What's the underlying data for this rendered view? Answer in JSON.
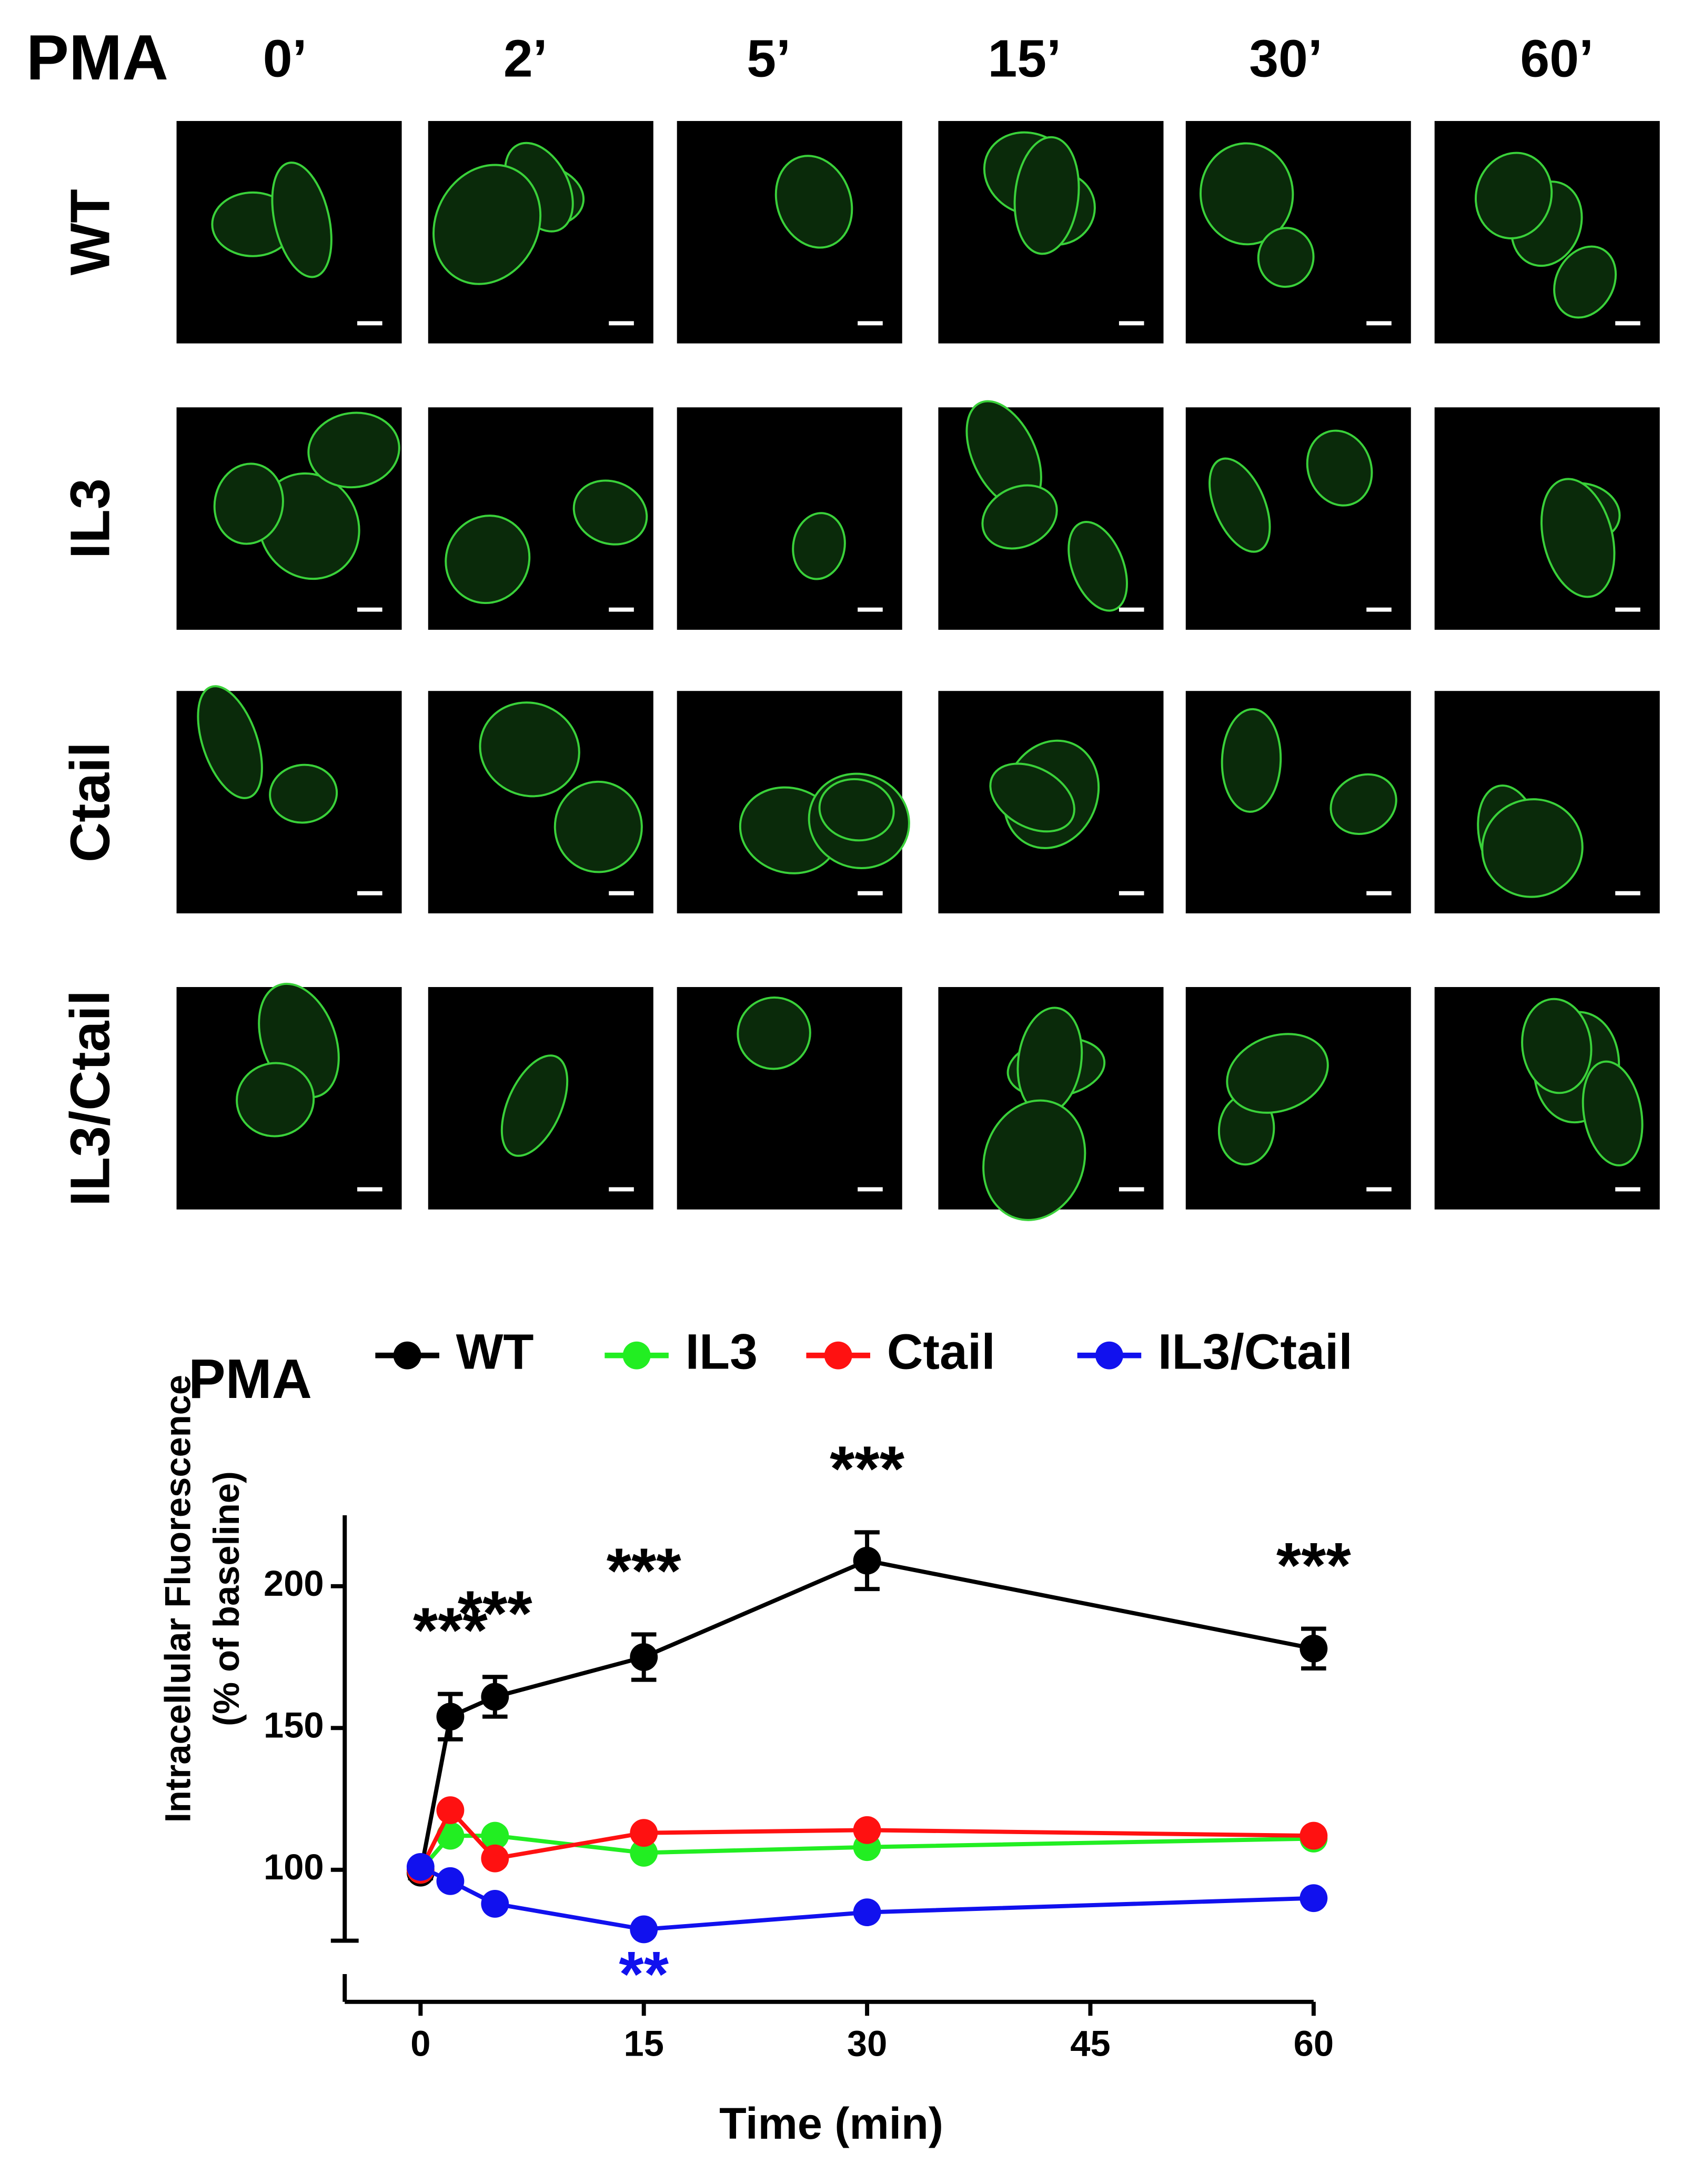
{
  "panel": {
    "title": "PMA",
    "columns": [
      "0’",
      "2’",
      "5’",
      "15’",
      "30’",
      "60’"
    ],
    "rows": [
      "WT",
      "IL3",
      "Ctail",
      "IL3/Ctail"
    ]
  },
  "chart_data": {
    "type": "line",
    "legend_title": "PMA",
    "x_label": "Time (min)",
    "y_label": [
      "Intracellular Fluorescence",
      "(% of baseline)"
    ],
    "x": [
      0,
      2,
      5,
      15,
      30,
      60
    ],
    "xlim": [
      -5,
      60
    ],
    "xticks": [
      0,
      15,
      30,
      45,
      60
    ],
    "ylim": [
      75,
      225
    ],
    "yticks": [
      100,
      150,
      200
    ],
    "series": [
      {
        "name": "WT",
        "color": "#000000",
        "values": [
          99,
          154,
          161,
          175,
          209,
          178
        ],
        "errors": [
          2,
          8,
          7,
          8,
          10,
          7
        ]
      },
      {
        "name": "IL3",
        "color": "#22ee22",
        "values": [
          100,
          112,
          112,
          106,
          108,
          111
        ]
      },
      {
        "name": "Ctail",
        "color": "#ff1111",
        "values": [
          100,
          121,
          104,
          113,
          114,
          112
        ]
      },
      {
        "name": "IL3/Ctail",
        "color": "#1111ee",
        "values": [
          101,
          96,
          88,
          79,
          85,
          90
        ]
      }
    ],
    "annotations": [
      {
        "text": "***",
        "x": 2,
        "color": "#000000"
      },
      {
        "text": "***",
        "x": 5,
        "color": "#000000"
      },
      {
        "text": "***",
        "x": 15,
        "color": "#000000"
      },
      {
        "text": "***",
        "x": 30,
        "color": "#000000"
      },
      {
        "text": "***",
        "x": 60,
        "color": "#000000"
      },
      {
        "text": "**",
        "x": 15,
        "color": "#1111ee"
      }
    ]
  }
}
